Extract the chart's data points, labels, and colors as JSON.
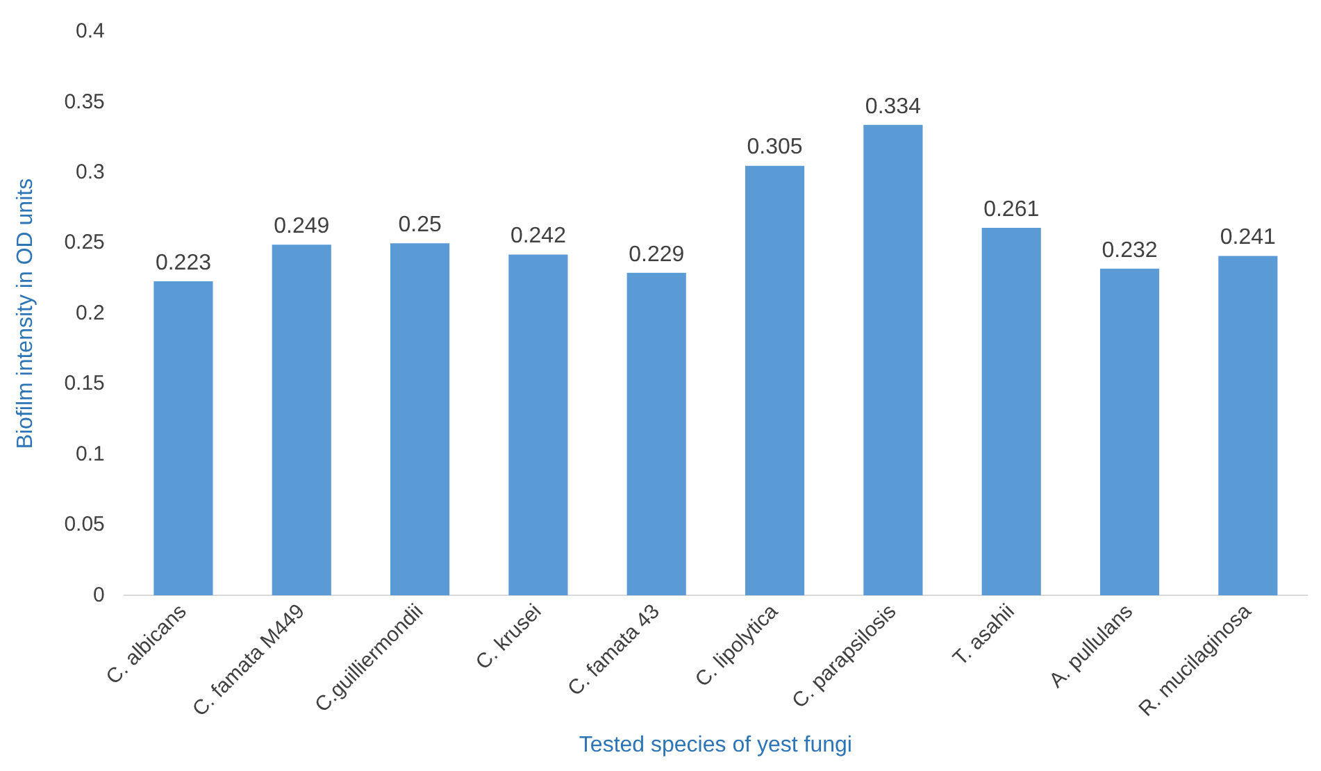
{
  "chart_data": {
    "type": "bar",
    "xlabel": "Tested species of yest fungi",
    "ylabel": "Biofilm intensity in OD units",
    "categories": [
      "C. albicans",
      "C. famata M449",
      "C.guilliermondii",
      "C. krusei",
      "C. famata 43",
      "C. lipolytica",
      "C. parapsilosis",
      "T. asahii",
      "A. pullulans",
      "R. mucilaginosa"
    ],
    "values": [
      0.223,
      0.249,
      0.25,
      0.242,
      0.229,
      0.305,
      0.334,
      0.261,
      0.232,
      0.241
    ],
    "color": "#5b9bd5",
    "ylim": [
      0,
      0.4
    ],
    "yticks": [
      0,
      0.05,
      0.1,
      0.15,
      0.2,
      0.25,
      0.3,
      0.35,
      0.4
    ],
    "grid": false,
    "legend": false,
    "data_labels": true
  }
}
